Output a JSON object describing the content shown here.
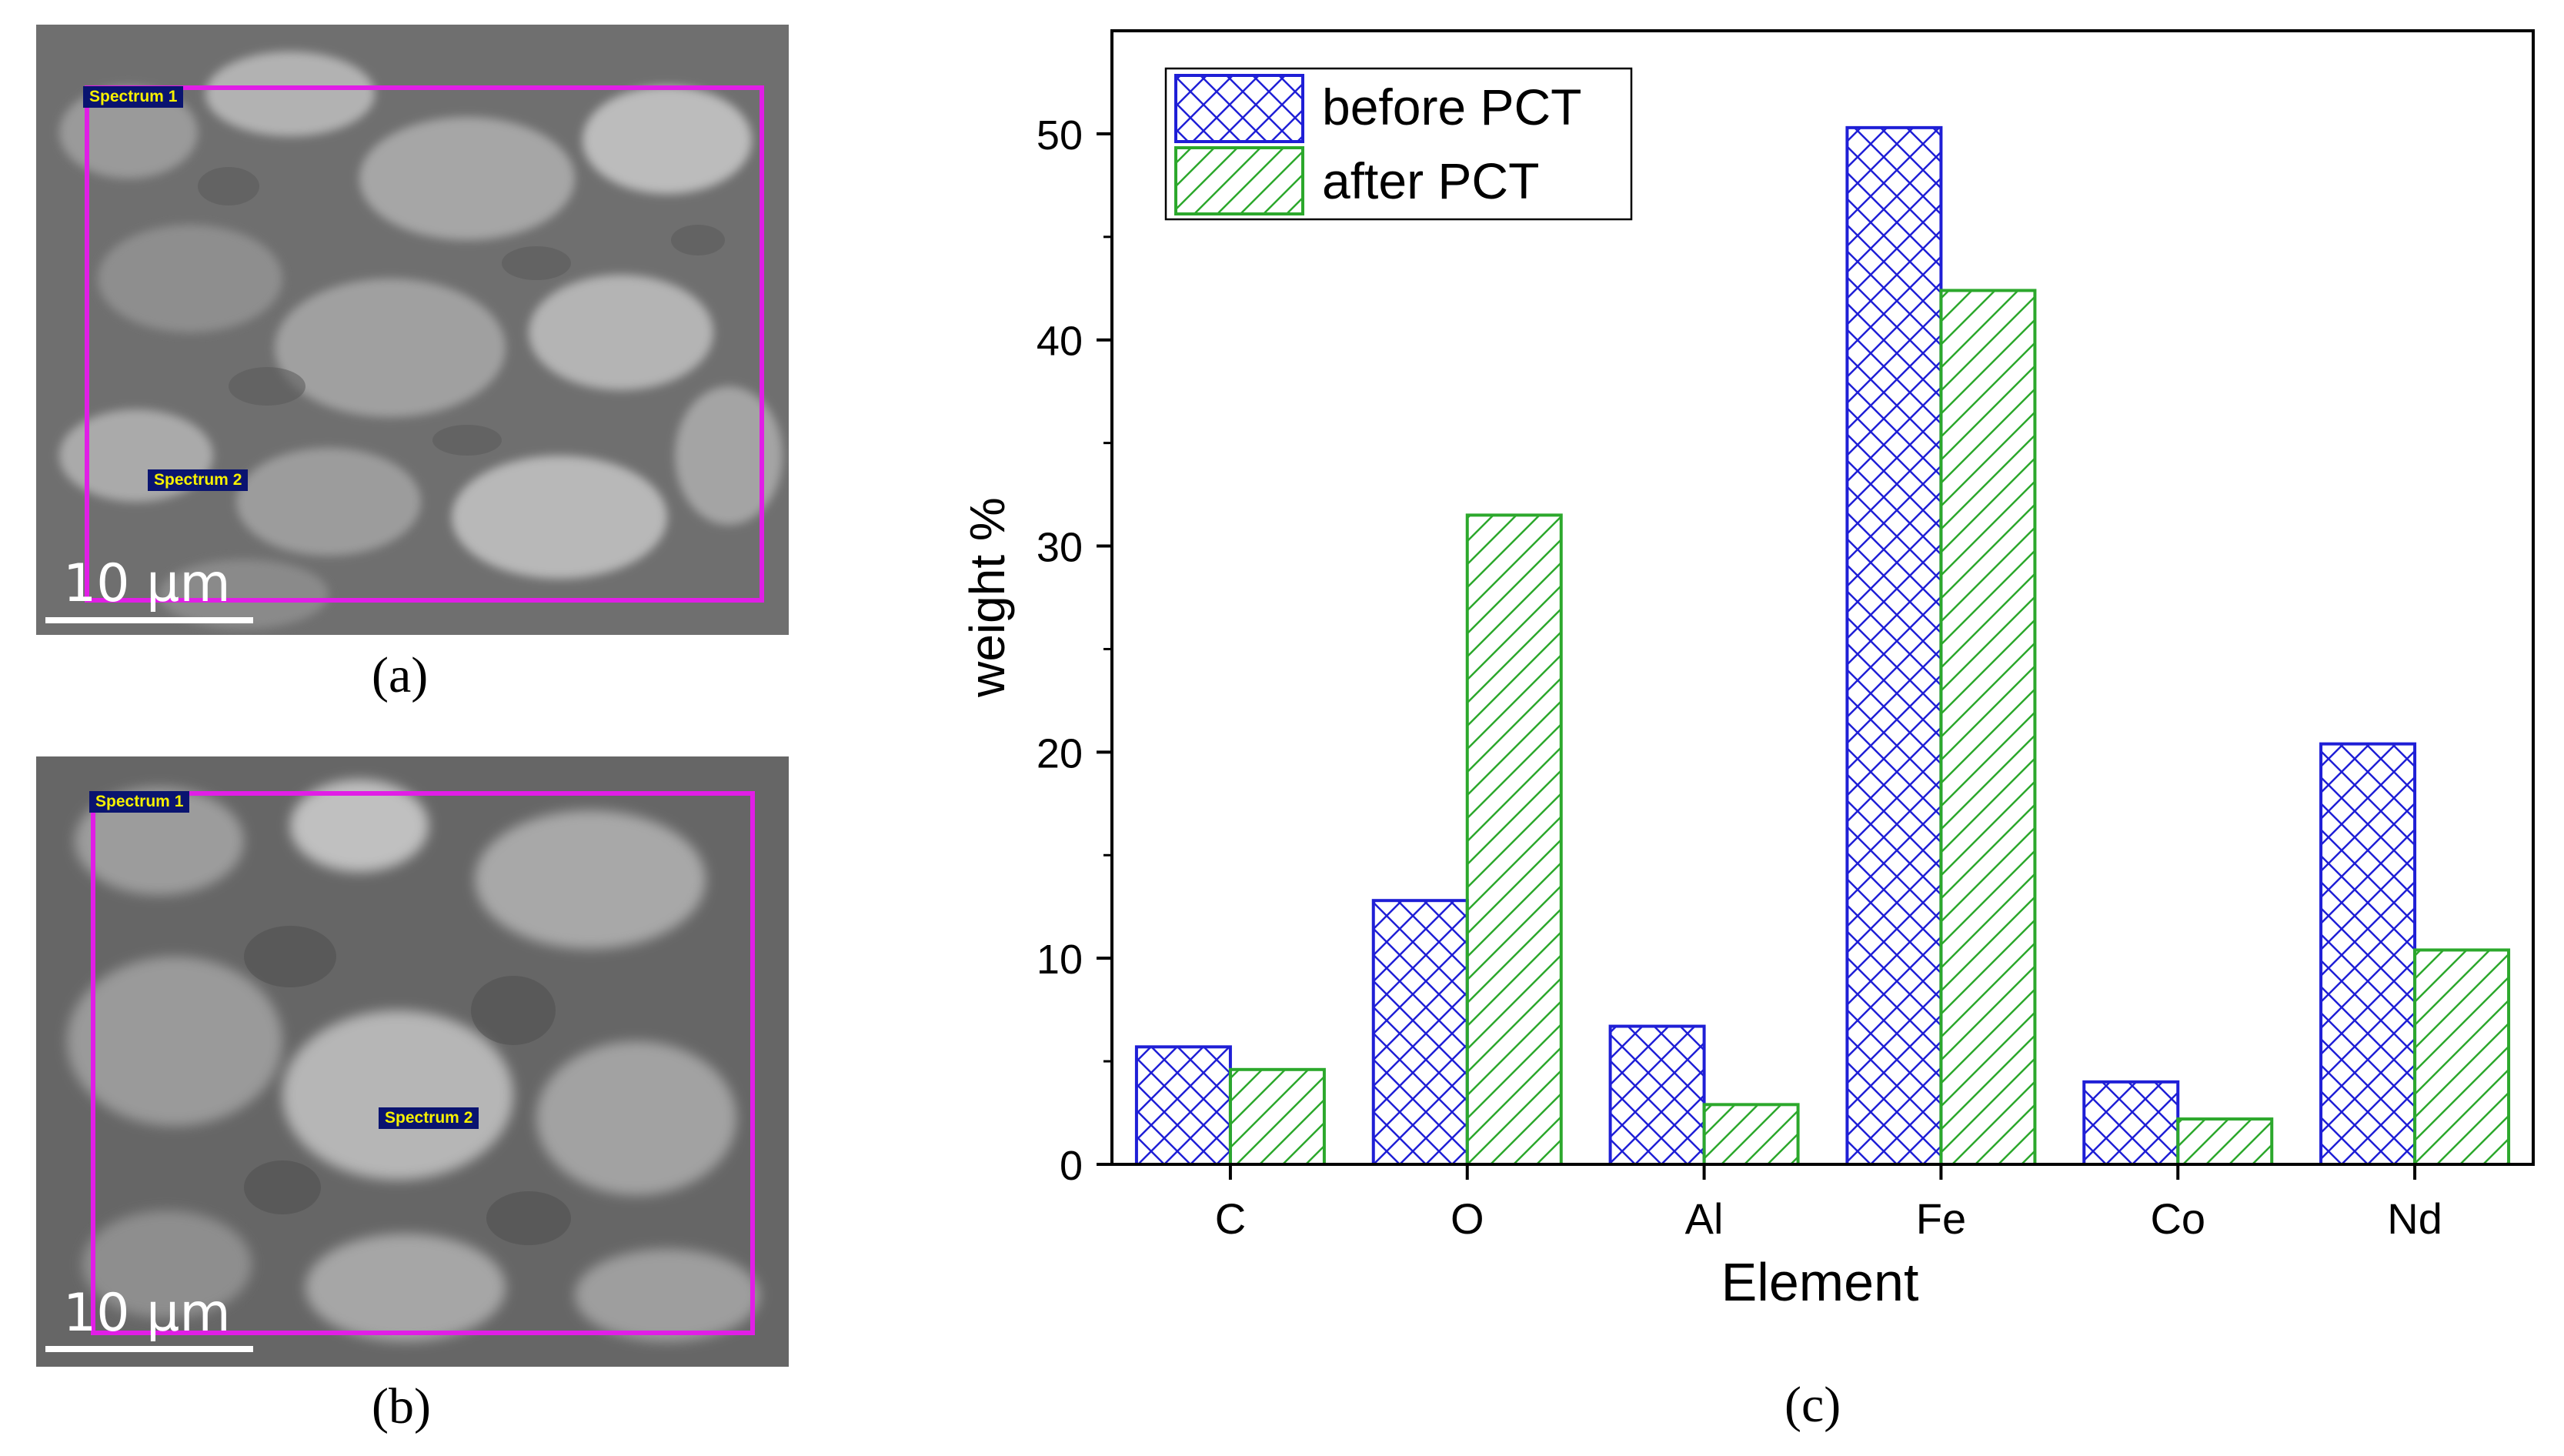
{
  "panels": {
    "a": {
      "caption": "(a)",
      "spectrum_labels": [
        "Spectrum 1",
        "Spectrum 2"
      ],
      "scale_text": "10 µm"
    },
    "b": {
      "caption": "(b)",
      "spectrum_labels": [
        "Spectrum 1",
        "Spectrum 2"
      ],
      "scale_text": "10 µm"
    },
    "c": {
      "caption": "(c)"
    }
  },
  "colors": {
    "before": "#1f1fd6",
    "after": "#2ca82c",
    "sem_box": "#e11ee6",
    "label_bg": "#0a1470",
    "label_text": "#f6f000"
  },
  "chart_data": {
    "type": "bar",
    "categories": [
      "C",
      "O",
      "Al",
      "Fe",
      "Co",
      "Nd"
    ],
    "series": [
      {
        "name": "before PCT",
        "values": [
          5.7,
          12.8,
          6.7,
          50.3,
          4.0,
          20.4
        ],
        "pattern": "crosshatch",
        "color": "#1f1fd6"
      },
      {
        "name": "after PCT",
        "values": [
          4.6,
          31.5,
          2.9,
          42.4,
          2.2,
          10.4
        ],
        "pattern": "diagonal",
        "color": "#2ca82c"
      }
    ],
    "xlabel": "Element",
    "ylabel": "weight %",
    "ylim": [
      0,
      55
    ],
    "yticks": [
      0,
      10,
      20,
      30,
      40,
      50
    ],
    "grid": false,
    "legend_position": "top-left"
  }
}
